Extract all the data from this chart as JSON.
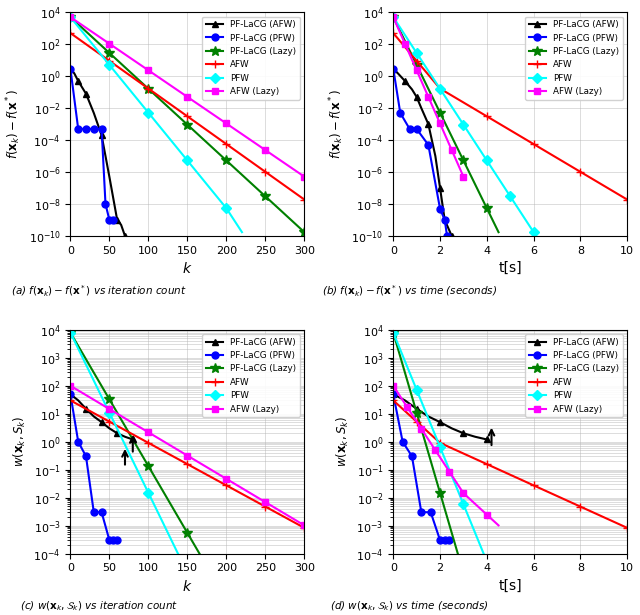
{
  "legend_labels": [
    "PF-LaCG (AFW)",
    "PF-LaCG (PFW)",
    "PF-LaCG (Lazy)",
    "AFW",
    "PFW",
    "AFW (Lazy)"
  ],
  "colors": [
    "black",
    "blue",
    "green",
    "red",
    "cyan",
    "magenta"
  ],
  "subplot_captions": [
    "(a) $f(\\mathbf{x}_k) - f(\\mathbf{x}^*)$ vs iteration count",
    "(b) $f(\\mathbf{x}_k) - f(\\mathbf{x}^*)$ vs time (seconds)",
    "(c) $w(\\mathbf{x}_k, \\mathcal{S}_k)$ vs iteration count",
    "(d) $w(\\mathbf{x}_k, \\mathcal{S}_k)$ vs time (seconds)"
  ],
  "ylabel_top": "$f(\\mathbf{x}_k) - f(\\mathbf{x}^*)$",
  "ylabel_bottom": "$w(\\mathbf{x}_k, S_k)$",
  "xlabel_iter": "$k$",
  "xlabel_time": "t[s]"
}
